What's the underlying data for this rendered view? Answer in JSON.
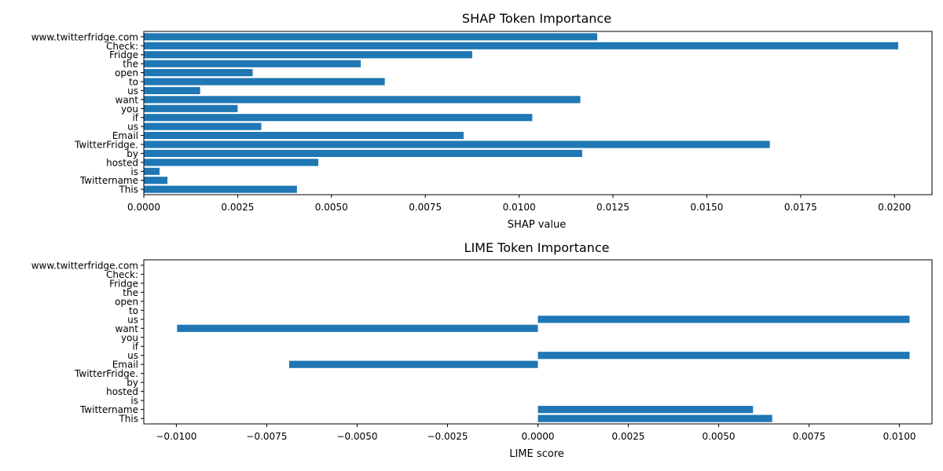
{
  "chart_data": [
    {
      "type": "bar",
      "orientation": "horizontal",
      "title": "SHAP Token Importance",
      "xlabel": "SHAP value",
      "ylabel": "",
      "xlim": [
        0,
        0.021
      ],
      "xticks": [
        0.0,
        0.0025,
        0.005,
        0.0075,
        0.01,
        0.0125,
        0.015,
        0.0175,
        0.02
      ],
      "xtick_labels": [
        "0.0000",
        "0.0025",
        "0.0050",
        "0.0075",
        "0.0100",
        "0.0125",
        "0.0150",
        "0.0175",
        "0.0200"
      ],
      "categories": [
        "This",
        "Twittername",
        "is",
        "hosted",
        "by",
        "TwitterFridge.",
        "Email",
        "us",
        "if",
        "you",
        "want",
        "us",
        "to",
        "open",
        "the",
        "Fridge",
        "Check:",
        "www.twitterfridge.com"
      ],
      "values": [
        0.00408,
        0.00063,
        0.00042,
        0.00465,
        0.01168,
        0.01668,
        0.00852,
        0.00313,
        0.01035,
        0.0025,
        0.01163,
        0.0015,
        0.00642,
        0.0029,
        0.00578,
        0.00875,
        0.0201,
        0.01208
      ],
      "color": "#1f77b4",
      "grid": false
    },
    {
      "type": "bar",
      "orientation": "horizontal",
      "title": "LIME Token Importance",
      "xlabel": "LIME score",
      "ylabel": "",
      "xlim": [
        -0.0109,
        0.0109
      ],
      "xticks": [
        -0.01,
        -0.0075,
        -0.005,
        -0.0025,
        0.0,
        0.0025,
        0.005,
        0.0075,
        0.01
      ],
      "xtick_labels": [
        "−0.0100",
        "−0.0075",
        "−0.0050",
        "−0.0025",
        "0.0000",
        "0.0025",
        "0.0050",
        "0.0075",
        "0.0100"
      ],
      "categories": [
        "This",
        "Twittername",
        "is",
        "hosted",
        "by",
        "TwitterFridge.",
        "Email",
        "us",
        "if",
        "you",
        "want",
        "us",
        "to",
        "open",
        "the",
        "Fridge",
        "Check:",
        "www.twitterfridge.com"
      ],
      "values": [
        0.00648,
        0.00595,
        0,
        0,
        0,
        0,
        -0.00688,
        0.01028,
        0,
        0,
        -0.00998,
        0.01028,
        0,
        0,
        0,
        0,
        0,
        0
      ],
      "color": "#1f77b4",
      "grid": false
    }
  ]
}
